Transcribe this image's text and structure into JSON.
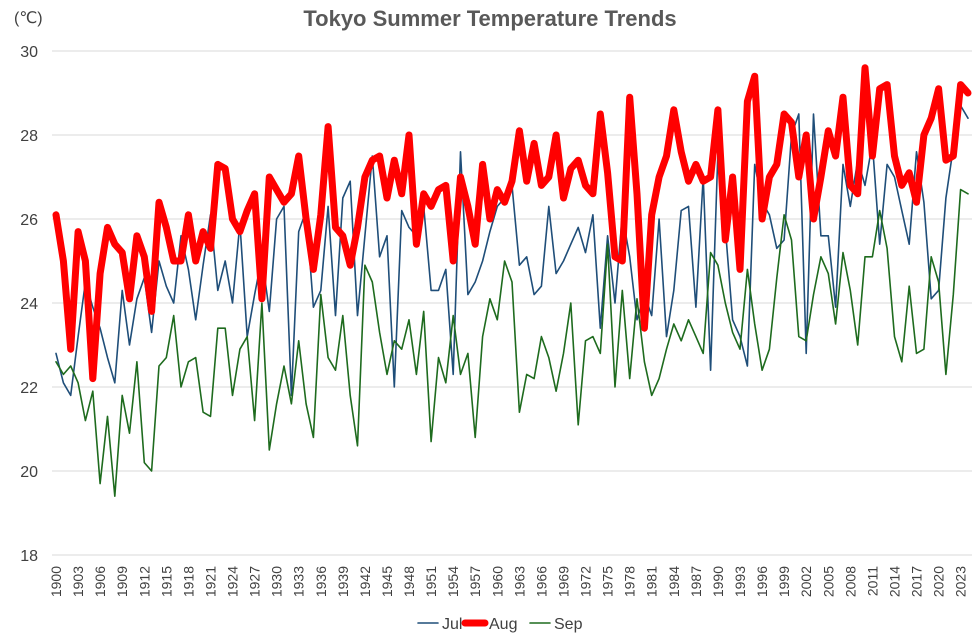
{
  "chart_data": {
    "type": "line",
    "title": "Tokyo Summer Temperature Trends",
    "unit_label": "(℃)",
    "xlabel": "",
    "ylabel": "",
    "ylim": [
      18,
      30
    ],
    "yticks": [
      18,
      20,
      22,
      24,
      26,
      28,
      30
    ],
    "grid": true,
    "legend": "bottom",
    "xtick_labels": [
      "1900",
      "1903",
      "1906",
      "1909",
      "1912",
      "1915",
      "1918",
      "1921",
      "1924",
      "1927",
      "1930",
      "1933",
      "1936",
      "1939",
      "1942",
      "1945",
      "1948",
      "1951",
      "1954",
      "1957",
      "1960",
      "1963",
      "1966",
      "1969",
      "1972",
      "1975",
      "1978",
      "1981",
      "1984",
      "1987",
      "1990",
      "1993",
      "1996",
      "1999",
      "2002",
      "2005",
      "2008",
      "2011",
      "2014",
      "2017",
      "2020",
      "2023"
    ],
    "x": [
      1900,
      1901,
      1902,
      1903,
      1904,
      1905,
      1906,
      1907,
      1908,
      1909,
      1910,
      1911,
      1912,
      1913,
      1914,
      1915,
      1916,
      1917,
      1918,
      1919,
      1920,
      1921,
      1922,
      1923,
      1924,
      1925,
      1926,
      1927,
      1928,
      1929,
      1930,
      1931,
      1932,
      1933,
      1934,
      1935,
      1936,
      1937,
      1938,
      1939,
      1940,
      1941,
      1942,
      1943,
      1944,
      1945,
      1946,
      1947,
      1948,
      1949,
      1950,
      1951,
      1952,
      1953,
      1954,
      1955,
      1956,
      1957,
      1958,
      1959,
      1960,
      1961,
      1962,
      1963,
      1964,
      1965,
      1966,
      1967,
      1968,
      1969,
      1970,
      1971,
      1972,
      1973,
      1974,
      1975,
      1976,
      1977,
      1978,
      1979,
      1980,
      1981,
      1982,
      1983,
      1984,
      1985,
      1986,
      1987,
      1988,
      1989,
      1990,
      1991,
      1992,
      1993,
      1994,
      1995,
      1996,
      1997,
      1998,
      1999,
      2000,
      2001,
      2002,
      2003,
      2004,
      2005,
      2006,
      2007,
      2008,
      2009,
      2010,
      2011,
      2012,
      2013,
      2014,
      2015,
      2016,
      2017,
      2018,
      2019,
      2020,
      2021,
      2022,
      2023,
      2024
    ],
    "series": [
      {
        "name": "Jul",
        "color": "#1f4e79",
        "width": 1.6,
        "values": [
          22.8,
          22.1,
          21.8,
          23.2,
          24.5,
          23.9,
          23.4,
          22.7,
          22.1,
          24.3,
          23.0,
          24.1,
          24.6,
          23.3,
          25.0,
          24.4,
          24.0,
          25.6,
          24.8,
          23.6,
          24.9,
          26.1,
          24.3,
          25.0,
          24.0,
          25.9,
          23.2,
          24.2,
          25.1,
          23.8,
          26.0,
          26.3,
          21.8,
          25.7,
          26.2,
          23.9,
          24.3,
          26.3,
          23.7,
          26.5,
          26.9,
          23.7,
          25.6,
          27.5,
          25.1,
          25.6,
          22.0,
          26.2,
          25.8,
          25.6,
          26.3,
          24.3,
          24.3,
          24.8,
          22.3,
          27.6,
          24.2,
          24.5,
          25.0,
          25.7,
          26.3,
          26.5,
          26.8,
          24.9,
          25.1,
          24.2,
          24.4,
          26.3,
          24.7,
          25.0,
          25.4,
          25.8,
          25.2,
          26.1,
          23.4,
          25.6,
          24.0,
          26.1,
          25.1,
          23.6,
          24.2,
          23.7,
          26.0,
          23.2,
          24.3,
          26.2,
          26.3,
          23.9,
          27.0,
          22.4,
          27.6,
          25.8,
          23.6,
          23.2,
          22.5,
          27.3,
          26.4,
          26.1,
          25.3,
          25.5,
          28.0,
          28.5,
          22.8,
          28.5,
          25.6,
          25.6,
          23.9,
          27.3,
          26.3,
          27.4,
          26.8,
          27.8,
          25.4,
          27.3,
          27.0,
          26.2,
          25.4,
          27.6,
          26.4,
          24.1,
          24.3,
          26.5,
          27.7,
          28.7,
          28.4
        ]
      },
      {
        "name": "Aug",
        "color": "#ff0000",
        "width": 7,
        "values": [
          26.1,
          25.0,
          22.9,
          25.7,
          25.0,
          22.2,
          24.7,
          25.8,
          25.4,
          25.2,
          24.1,
          25.6,
          25.1,
          23.8,
          26.4,
          25.8,
          25.0,
          25.0,
          26.1,
          25.0,
          25.7,
          25.3,
          27.3,
          27.2,
          26.0,
          25.7,
          26.2,
          26.6,
          24.1,
          27.0,
          26.7,
          26.4,
          26.6,
          27.5,
          26.0,
          24.8,
          26.1,
          28.2,
          25.8,
          25.6,
          24.9,
          25.8,
          27.0,
          27.4,
          27.5,
          26.5,
          27.4,
          26.6,
          28.0,
          25.4,
          26.6,
          26.3,
          26.7,
          26.8,
          25.0,
          27.0,
          26.3,
          25.4,
          27.3,
          26.0,
          26.7,
          26.4,
          26.9,
          28.1,
          26.9,
          27.8,
          26.8,
          27.0,
          28.0,
          26.5,
          27.2,
          27.4,
          26.8,
          26.6,
          28.5,
          27.1,
          25.1,
          25.0,
          28.9,
          26.6,
          23.4,
          26.1,
          27.0,
          27.5,
          28.6,
          27.6,
          26.9,
          27.3,
          26.9,
          27.0,
          28.6,
          25.5,
          27.0,
          24.8,
          28.8,
          29.4,
          26.0,
          27.0,
          27.3,
          28.5,
          28.3,
          27.0,
          28.0,
          26.0,
          27.0,
          28.1,
          27.5,
          28.9,
          26.8,
          26.6,
          29.6,
          27.5,
          29.1,
          29.2,
          27.5,
          26.8,
          27.1,
          26.4,
          28.0,
          28.4,
          29.1,
          27.4,
          27.5,
          29.2,
          29.0
        ]
      },
      {
        "name": "Sep",
        "color": "#1e6b1e",
        "width": 1.6,
        "values": [
          22.6,
          22.3,
          22.5,
          22.1,
          21.2,
          21.9,
          19.7,
          21.3,
          19.4,
          21.8,
          20.9,
          22.6,
          20.2,
          20.0,
          22.5,
          22.7,
          23.7,
          22.0,
          22.6,
          22.7,
          21.4,
          21.3,
          23.4,
          23.4,
          21.8,
          22.9,
          23.2,
          21.2,
          24.0,
          20.5,
          21.6,
          22.5,
          21.6,
          23.1,
          21.6,
          20.8,
          24.2,
          22.7,
          22.4,
          23.7,
          21.8,
          20.6,
          24.9,
          24.5,
          23.3,
          22.3,
          23.1,
          22.9,
          23.6,
          22.3,
          23.8,
          20.7,
          22.7,
          22.1,
          23.7,
          22.3,
          22.8,
          20.8,
          23.2,
          24.1,
          23.6,
          25.0,
          24.5,
          21.4,
          22.3,
          22.2,
          23.2,
          22.7,
          21.9,
          22.8,
          24.0,
          21.1,
          23.1,
          23.2,
          22.8,
          25.4,
          22.0,
          24.3,
          22.2,
          24.1,
          22.6,
          21.8,
          22.2,
          22.9,
          23.5,
          23.1,
          23.6,
          23.2,
          22.8,
          25.2,
          24.9,
          24.0,
          23.3,
          22.9,
          24.8,
          23.5,
          22.4,
          22.9,
          24.6,
          26.1,
          25.5,
          23.2,
          23.1,
          24.2,
          25.1,
          24.7,
          23.5,
          25.2,
          24.3,
          23.0,
          25.1,
          25.1,
          26.2,
          25.3,
          23.2,
          22.6,
          24.4,
          22.8,
          22.9,
          25.1,
          24.5,
          22.3,
          24.2,
          26.7,
          26.6
        ]
      }
    ]
  }
}
